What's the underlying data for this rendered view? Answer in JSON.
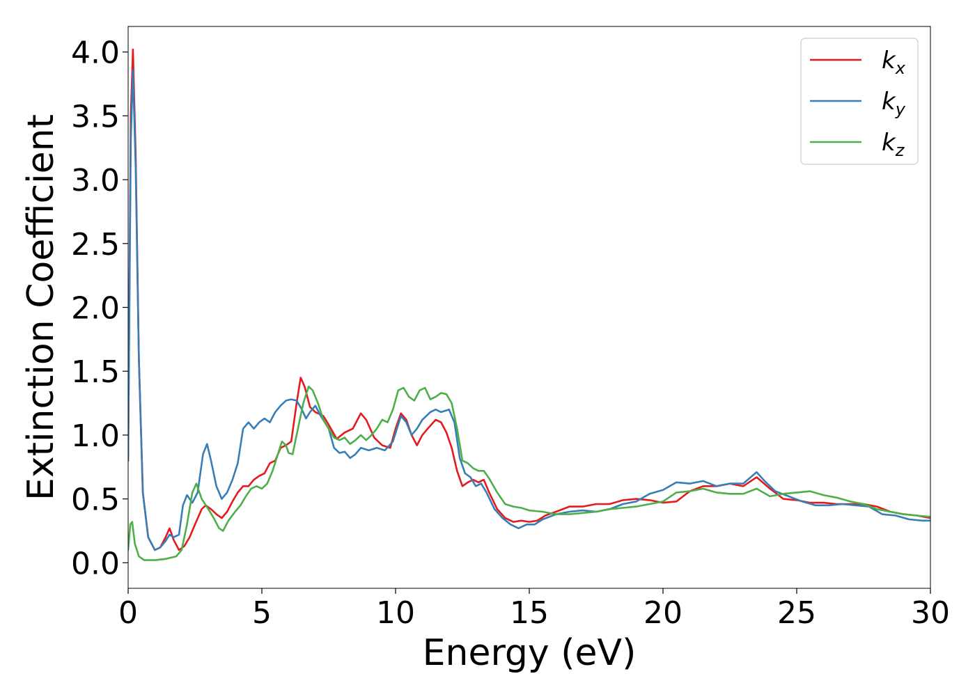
{
  "chart_data": {
    "type": "line",
    "title": "",
    "xlabel": "Energy (eV)",
    "ylabel": "Extinction Coefficient",
    "xlim": [
      0,
      30
    ],
    "ylim": [
      -0.2,
      4.2
    ],
    "xticks": [
      0,
      5,
      10,
      15,
      20,
      25,
      30
    ],
    "xtick_labels": [
      "0",
      "5",
      "10",
      "15",
      "20",
      "25",
      "30"
    ],
    "yticks": [
      0.0,
      0.5,
      1.0,
      1.5,
      2.0,
      2.5,
      3.0,
      3.5,
      4.0
    ],
    "ytick_labels": [
      "0.0",
      "0.5",
      "1.0",
      "1.5",
      "2.0",
      "2.5",
      "3.0",
      "3.5",
      "4.0"
    ],
    "grid": false,
    "legend_position": "top-right",
    "series": [
      {
        "name": "k_x",
        "label_base": "k",
        "label_sub": "x",
        "color": "#e41a1c",
        "points": [
          [
            0,
            0.8
          ],
          [
            0.1,
            3.5
          ],
          [
            0.18,
            4.02
          ],
          [
            0.28,
            3.2
          ],
          [
            0.4,
            1.6
          ],
          [
            0.55,
            0.55
          ],
          [
            0.75,
            0.2
          ],
          [
            1.0,
            0.1
          ],
          [
            1.2,
            0.12
          ],
          [
            1.4,
            0.2
          ],
          [
            1.55,
            0.27
          ],
          [
            1.7,
            0.18
          ],
          [
            1.9,
            0.1
          ],
          [
            2.1,
            0.13
          ],
          [
            2.3,
            0.2
          ],
          [
            2.5,
            0.3
          ],
          [
            2.75,
            0.42
          ],
          [
            2.9,
            0.45
          ],
          [
            3.1,
            0.42
          ],
          [
            3.3,
            0.38
          ],
          [
            3.5,
            0.35
          ],
          [
            3.7,
            0.4
          ],
          [
            3.9,
            0.48
          ],
          [
            4.1,
            0.55
          ],
          [
            4.3,
            0.6
          ],
          [
            4.5,
            0.6
          ],
          [
            4.7,
            0.65
          ],
          [
            4.9,
            0.68
          ],
          [
            5.1,
            0.7
          ],
          [
            5.3,
            0.78
          ],
          [
            5.5,
            0.8
          ],
          [
            5.7,
            0.9
          ],
          [
            5.9,
            0.92
          ],
          [
            6.1,
            0.95
          ],
          [
            6.3,
            1.25
          ],
          [
            6.45,
            1.45
          ],
          [
            6.6,
            1.38
          ],
          [
            6.8,
            1.22
          ],
          [
            7.0,
            1.18
          ],
          [
            7.3,
            1.15
          ],
          [
            7.5,
            1.08
          ],
          [
            7.8,
            0.97
          ],
          [
            8.1,
            1.02
          ],
          [
            8.4,
            1.05
          ],
          [
            8.7,
            1.17
          ],
          [
            8.9,
            1.12
          ],
          [
            9.2,
            0.98
          ],
          [
            9.5,
            0.92
          ],
          [
            9.8,
            0.9
          ],
          [
            10.0,
            1.05
          ],
          [
            10.2,
            1.17
          ],
          [
            10.4,
            1.12
          ],
          [
            10.6,
            1.0
          ],
          [
            10.8,
            0.92
          ],
          [
            11.0,
            1.0
          ],
          [
            11.2,
            1.05
          ],
          [
            11.5,
            1.12
          ],
          [
            11.7,
            1.1
          ],
          [
            11.9,
            1.02
          ],
          [
            12.1,
            0.9
          ],
          [
            12.3,
            0.72
          ],
          [
            12.5,
            0.6
          ],
          [
            12.7,
            0.63
          ],
          [
            12.9,
            0.65
          ],
          [
            13.1,
            0.63
          ],
          [
            13.3,
            0.65
          ],
          [
            13.5,
            0.55
          ],
          [
            13.8,
            0.42
          ],
          [
            14.1,
            0.35
          ],
          [
            14.4,
            0.32
          ],
          [
            14.7,
            0.33
          ],
          [
            15.0,
            0.32
          ],
          [
            15.3,
            0.33
          ],
          [
            15.6,
            0.37
          ],
          [
            16.0,
            0.4
          ],
          [
            16.5,
            0.44
          ],
          [
            17.0,
            0.44
          ],
          [
            17.5,
            0.46
          ],
          [
            18.0,
            0.46
          ],
          [
            18.5,
            0.49
          ],
          [
            19.0,
            0.5
          ],
          [
            19.5,
            0.49
          ],
          [
            20.0,
            0.47
          ],
          [
            20.5,
            0.48
          ],
          [
            21.0,
            0.56
          ],
          [
            21.5,
            0.6
          ],
          [
            22.0,
            0.6
          ],
          [
            22.5,
            0.62
          ],
          [
            23.0,
            0.6
          ],
          [
            23.5,
            0.67
          ],
          [
            24.0,
            0.58
          ],
          [
            24.5,
            0.5
          ],
          [
            25.0,
            0.49
          ],
          [
            25.5,
            0.47
          ],
          [
            26.0,
            0.47
          ],
          [
            26.5,
            0.46
          ],
          [
            27.0,
            0.46
          ],
          [
            27.5,
            0.46
          ],
          [
            28.0,
            0.44
          ],
          [
            28.5,
            0.4
          ],
          [
            29.0,
            0.38
          ],
          [
            29.5,
            0.37
          ],
          [
            30.0,
            0.35
          ]
        ]
      },
      {
        "name": "k_y",
        "label_base": "k",
        "label_sub": "y",
        "color": "#377eb8",
        "points": [
          [
            0,
            0.8
          ],
          [
            0.1,
            3.3
          ],
          [
            0.18,
            3.86
          ],
          [
            0.28,
            3.1
          ],
          [
            0.4,
            1.6
          ],
          [
            0.55,
            0.55
          ],
          [
            0.75,
            0.2
          ],
          [
            1.0,
            0.1
          ],
          [
            1.2,
            0.12
          ],
          [
            1.4,
            0.17
          ],
          [
            1.55,
            0.22
          ],
          [
            1.7,
            0.2
          ],
          [
            1.9,
            0.22
          ],
          [
            2.05,
            0.45
          ],
          [
            2.2,
            0.53
          ],
          [
            2.4,
            0.47
          ],
          [
            2.6,
            0.55
          ],
          [
            2.8,
            0.85
          ],
          [
            2.95,
            0.93
          ],
          [
            3.1,
            0.8
          ],
          [
            3.3,
            0.6
          ],
          [
            3.5,
            0.5
          ],
          [
            3.7,
            0.55
          ],
          [
            3.9,
            0.65
          ],
          [
            4.1,
            0.78
          ],
          [
            4.3,
            1.05
          ],
          [
            4.5,
            1.1
          ],
          [
            4.7,
            1.05
          ],
          [
            4.9,
            1.1
          ],
          [
            5.1,
            1.13
          ],
          [
            5.3,
            1.1
          ],
          [
            5.5,
            1.18
          ],
          [
            5.7,
            1.23
          ],
          [
            5.9,
            1.27
          ],
          [
            6.1,
            1.28
          ],
          [
            6.3,
            1.27
          ],
          [
            6.5,
            1.2
          ],
          [
            6.65,
            1.13
          ],
          [
            6.8,
            1.18
          ],
          [
            7.0,
            1.23
          ],
          [
            7.2,
            1.15
          ],
          [
            7.5,
            1.05
          ],
          [
            7.7,
            0.9
          ],
          [
            7.9,
            0.86
          ],
          [
            8.1,
            0.87
          ],
          [
            8.3,
            0.82
          ],
          [
            8.5,
            0.85
          ],
          [
            8.7,
            0.9
          ],
          [
            9.0,
            0.88
          ],
          [
            9.3,
            0.9
          ],
          [
            9.6,
            0.88
          ],
          [
            9.9,
            0.95
          ],
          [
            10.2,
            1.15
          ],
          [
            10.4,
            1.1
          ],
          [
            10.6,
            1.0
          ],
          [
            10.8,
            1.05
          ],
          [
            11.0,
            1.12
          ],
          [
            11.3,
            1.18
          ],
          [
            11.5,
            1.2
          ],
          [
            11.7,
            1.18
          ],
          [
            12.0,
            1.2
          ],
          [
            12.2,
            1.1
          ],
          [
            12.4,
            0.82
          ],
          [
            12.6,
            0.7
          ],
          [
            12.8,
            0.67
          ],
          [
            13.0,
            0.6
          ],
          [
            13.2,
            0.62
          ],
          [
            13.4,
            0.55
          ],
          [
            13.7,
            0.42
          ],
          [
            14.0,
            0.35
          ],
          [
            14.3,
            0.3
          ],
          [
            14.6,
            0.27
          ],
          [
            14.9,
            0.3
          ],
          [
            15.2,
            0.3
          ],
          [
            15.5,
            0.34
          ],
          [
            16.0,
            0.38
          ],
          [
            16.5,
            0.4
          ],
          [
            17.0,
            0.41
          ],
          [
            17.5,
            0.4
          ],
          [
            18.0,
            0.42
          ],
          [
            18.5,
            0.46
          ],
          [
            19.0,
            0.48
          ],
          [
            19.5,
            0.54
          ],
          [
            20.0,
            0.57
          ],
          [
            20.5,
            0.63
          ],
          [
            21.0,
            0.62
          ],
          [
            21.5,
            0.64
          ],
          [
            22.0,
            0.6
          ],
          [
            22.5,
            0.62
          ],
          [
            23.0,
            0.62
          ],
          [
            23.5,
            0.71
          ],
          [
            23.8,
            0.64
          ],
          [
            24.2,
            0.56
          ],
          [
            24.7,
            0.52
          ],
          [
            25.2,
            0.48
          ],
          [
            25.7,
            0.45
          ],
          [
            26.2,
            0.45
          ],
          [
            26.7,
            0.46
          ],
          [
            27.2,
            0.45
          ],
          [
            27.7,
            0.44
          ],
          [
            28.2,
            0.38
          ],
          [
            28.7,
            0.37
          ],
          [
            29.2,
            0.34
          ],
          [
            29.7,
            0.33
          ],
          [
            30.0,
            0.33
          ]
        ]
      },
      {
        "name": "k_z",
        "label_base": "k",
        "label_sub": "z",
        "color": "#4daf4a",
        "points": [
          [
            0,
            0.1
          ],
          [
            0.08,
            0.3
          ],
          [
            0.15,
            0.32
          ],
          [
            0.25,
            0.15
          ],
          [
            0.4,
            0.05
          ],
          [
            0.6,
            0.02
          ],
          [
            1.0,
            0.02
          ],
          [
            1.4,
            0.03
          ],
          [
            1.8,
            0.05
          ],
          [
            2.0,
            0.1
          ],
          [
            2.2,
            0.3
          ],
          [
            2.4,
            0.55
          ],
          [
            2.55,
            0.62
          ],
          [
            2.75,
            0.5
          ],
          [
            3.0,
            0.42
          ],
          [
            3.2,
            0.35
          ],
          [
            3.4,
            0.27
          ],
          [
            3.55,
            0.25
          ],
          [
            3.75,
            0.33
          ],
          [
            4.0,
            0.4
          ],
          [
            4.2,
            0.45
          ],
          [
            4.4,
            0.52
          ],
          [
            4.6,
            0.58
          ],
          [
            4.8,
            0.6
          ],
          [
            5.0,
            0.58
          ],
          [
            5.2,
            0.62
          ],
          [
            5.4,
            0.72
          ],
          [
            5.6,
            0.85
          ],
          [
            5.75,
            0.95
          ],
          [
            5.9,
            0.92
          ],
          [
            6.0,
            0.86
          ],
          [
            6.15,
            0.85
          ],
          [
            6.35,
            1.05
          ],
          [
            6.55,
            1.25
          ],
          [
            6.75,
            1.38
          ],
          [
            6.9,
            1.35
          ],
          [
            7.1,
            1.25
          ],
          [
            7.3,
            1.12
          ],
          [
            7.5,
            1.05
          ],
          [
            7.7,
            0.98
          ],
          [
            7.9,
            0.96
          ],
          [
            8.1,
            0.98
          ],
          [
            8.3,
            0.93
          ],
          [
            8.5,
            0.96
          ],
          [
            8.7,
            1.0
          ],
          [
            8.9,
            0.96
          ],
          [
            9.1,
            1.0
          ],
          [
            9.3,
            1.05
          ],
          [
            9.5,
            1.12
          ],
          [
            9.7,
            1.1
          ],
          [
            9.9,
            1.2
          ],
          [
            10.1,
            1.35
          ],
          [
            10.3,
            1.37
          ],
          [
            10.5,
            1.3
          ],
          [
            10.7,
            1.27
          ],
          [
            10.9,
            1.35
          ],
          [
            11.1,
            1.37
          ],
          [
            11.3,
            1.28
          ],
          [
            11.5,
            1.3
          ],
          [
            11.7,
            1.33
          ],
          [
            11.9,
            1.32
          ],
          [
            12.1,
            1.25
          ],
          [
            12.3,
            1.05
          ],
          [
            12.5,
            0.8
          ],
          [
            12.7,
            0.78
          ],
          [
            12.9,
            0.74
          ],
          [
            13.1,
            0.72
          ],
          [
            13.3,
            0.72
          ],
          [
            13.5,
            0.66
          ],
          [
            13.8,
            0.55
          ],
          [
            14.1,
            0.46
          ],
          [
            14.4,
            0.44
          ],
          [
            14.7,
            0.43
          ],
          [
            15.0,
            0.41
          ],
          [
            15.5,
            0.4
          ],
          [
            16.0,
            0.38
          ],
          [
            16.5,
            0.38
          ],
          [
            17.0,
            0.39
          ],
          [
            17.5,
            0.4
          ],
          [
            18.0,
            0.42
          ],
          [
            18.5,
            0.43
          ],
          [
            19.0,
            0.44
          ],
          [
            19.5,
            0.46
          ],
          [
            20.0,
            0.48
          ],
          [
            20.5,
            0.55
          ],
          [
            21.0,
            0.56
          ],
          [
            21.5,
            0.58
          ],
          [
            22.0,
            0.55
          ],
          [
            22.5,
            0.54
          ],
          [
            23.0,
            0.54
          ],
          [
            23.5,
            0.58
          ],
          [
            24.0,
            0.52
          ],
          [
            24.5,
            0.54
          ],
          [
            25.0,
            0.55
          ],
          [
            25.5,
            0.56
          ],
          [
            26.0,
            0.53
          ],
          [
            26.5,
            0.51
          ],
          [
            27.0,
            0.48
          ],
          [
            27.5,
            0.46
          ],
          [
            28.0,
            0.42
          ],
          [
            28.5,
            0.4
          ],
          [
            29.0,
            0.38
          ],
          [
            29.5,
            0.37
          ],
          [
            30.0,
            0.36
          ]
        ]
      }
    ]
  }
}
